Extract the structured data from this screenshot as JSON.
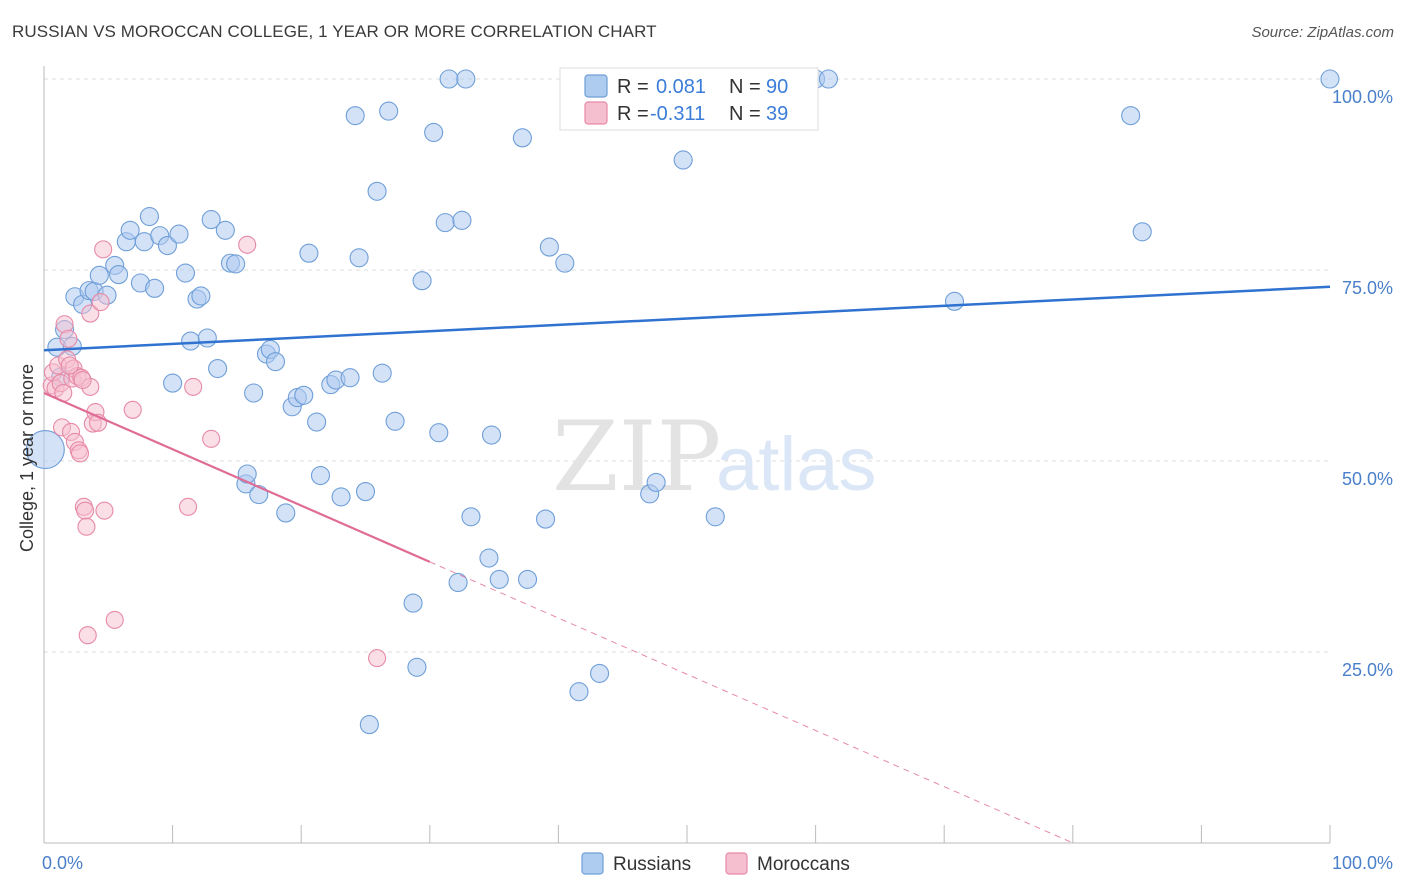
{
  "header": {
    "title": "RUSSIAN VS MOROCCAN COLLEGE, 1 YEAR OR MORE CORRELATION CHART",
    "source": "Source: ZipAtlas.com"
  },
  "watermark": {
    "zip": "ZIP",
    "atlas": "atlas"
  },
  "colors": {
    "russians_fill": "#aecbf0",
    "russians_stroke": "#6f9fd8",
    "russians_line": "#2f72d0",
    "moroccans_fill": "#f6bfd0",
    "moroccans_stroke": "#e78aa8",
    "moroccans_line": "#e06b95",
    "tick_text": "#4a7fc9",
    "grid": "#dddddd"
  },
  "legend": {
    "r_label": "R =",
    "n_label": "N =",
    "rows": [
      {
        "series": "Russians",
        "r": "0.081",
        "n": "90"
      },
      {
        "series": "Moroccans",
        "r": "-0.311",
        "n": "39"
      }
    ]
  },
  "chart_data": {
    "type": "scatter",
    "title": "RUSSIAN VS MOROCCAN COLLEGE, 1 YEAR OR MORE CORRELATION CHART",
    "xlabel": "",
    "ylabel": "College, 1 year or more",
    "xlim": [
      0,
      100
    ],
    "ylim": [
      0,
      100
    ],
    "x_tick_labels": [
      "0.0%",
      "100.0%"
    ],
    "y_tick_labels": [
      "25.0%",
      "50.0%",
      "75.0%",
      "100.0%"
    ],
    "y_ticks": [
      25,
      50,
      75,
      100
    ],
    "grid": true,
    "legend_position": "top-center",
    "series": [
      {
        "name": "Russians",
        "r": 0.081,
        "n": 90,
        "trend": {
          "x": [
            0,
            100
          ],
          "y": [
            64.5,
            72.8
          ]
        },
        "points": [
          [
            0.1,
            51.5
          ],
          [
            1.0,
            64.9
          ],
          [
            1.3,
            61.0
          ],
          [
            1.6,
            67.2
          ],
          [
            2.2,
            65.0
          ],
          [
            2.4,
            71.5
          ],
          [
            3.0,
            70.5
          ],
          [
            3.5,
            72.3
          ],
          [
            3.9,
            72.2
          ],
          [
            4.3,
            74.3
          ],
          [
            4.9,
            71.7
          ],
          [
            5.5,
            75.6
          ],
          [
            5.8,
            74.4
          ],
          [
            6.4,
            78.7
          ],
          [
            6.7,
            80.2
          ],
          [
            7.5,
            73.3
          ],
          [
            7.8,
            78.7
          ],
          [
            8.2,
            82.0
          ],
          [
            8.6,
            72.6
          ],
          [
            9.0,
            79.5
          ],
          [
            9.6,
            78.2
          ],
          [
            10.5,
            79.7
          ],
          [
            10.0,
            60.2
          ],
          [
            11.0,
            74.6
          ],
          [
            11.4,
            65.7
          ],
          [
            11.9,
            71.2
          ],
          [
            12.2,
            71.6
          ],
          [
            12.7,
            66.1
          ],
          [
            13.0,
            81.6
          ],
          [
            13.5,
            62.1
          ],
          [
            14.1,
            80.2
          ],
          [
            14.5,
            75.9
          ],
          [
            14.9,
            75.8
          ],
          [
            15.7,
            47.0
          ],
          [
            15.8,
            48.3
          ],
          [
            16.3,
            58.9
          ],
          [
            16.7,
            45.6
          ],
          [
            17.3,
            64.0
          ],
          [
            17.6,
            64.6
          ],
          [
            18.0,
            63.0
          ],
          [
            18.8,
            43.2
          ],
          [
            19.3,
            57.1
          ],
          [
            19.7,
            58.3
          ],
          [
            20.2,
            58.6
          ],
          [
            20.6,
            77.2
          ],
          [
            21.2,
            55.1
          ],
          [
            21.5,
            48.1
          ],
          [
            22.3,
            60.0
          ],
          [
            22.7,
            60.6
          ],
          [
            23.1,
            45.3
          ],
          [
            23.8,
            60.9
          ],
          [
            24.2,
            95.2
          ],
          [
            24.5,
            76.6
          ],
          [
            25.0,
            46.0
          ],
          [
            25.3,
            15.5
          ],
          [
            25.9,
            85.3
          ],
          [
            26.3,
            61.5
          ],
          [
            26.8,
            95.8
          ],
          [
            27.3,
            55.2
          ],
          [
            28.7,
            31.4
          ],
          [
            29.0,
            23.0
          ],
          [
            29.4,
            73.6
          ],
          [
            30.3,
            93.0
          ],
          [
            30.7,
            53.7
          ],
          [
            31.2,
            81.2
          ],
          [
            31.5,
            100.0
          ],
          [
            32.2,
            34.1
          ],
          [
            32.5,
            81.5
          ],
          [
            32.8,
            100.0
          ],
          [
            33.2,
            42.7
          ],
          [
            34.6,
            37.3
          ],
          [
            34.8,
            53.4
          ],
          [
            35.4,
            34.5
          ],
          [
            37.2,
            92.3
          ],
          [
            37.6,
            34.5
          ],
          [
            39.0,
            42.4
          ],
          [
            39.3,
            78.0
          ],
          [
            40.5,
            75.9
          ],
          [
            41.6,
            19.8
          ],
          [
            43.2,
            22.2
          ],
          [
            47.1,
            45.7
          ],
          [
            47.6,
            47.2
          ],
          [
            49.7,
            89.4
          ],
          [
            52.2,
            42.7
          ],
          [
            60.0,
            100.0
          ],
          [
            61.0,
            100.0
          ],
          [
            70.8,
            70.9
          ],
          [
            84.5,
            95.2
          ],
          [
            85.4,
            80.0
          ],
          [
            100.0,
            100.0
          ]
        ]
      },
      {
        "name": "Moroccans",
        "r": -0.311,
        "n": 39,
        "trend": {
          "x": [
            0,
            30
          ],
          "y": [
            58.9,
            36.8
          ]
        },
        "trend_dashed": {
          "x": [
            30,
            100
          ],
          "y": [
            36.8,
            -14.7
          ]
        },
        "points": [
          [
            0.6,
            59.9
          ],
          [
            0.7,
            61.6
          ],
          [
            0.9,
            59.5
          ],
          [
            1.1,
            62.5
          ],
          [
            1.3,
            60.2
          ],
          [
            1.4,
            54.4
          ],
          [
            1.6,
            67.9
          ],
          [
            1.8,
            63.3
          ],
          [
            2.1,
            53.8
          ],
          [
            2.2,
            60.8
          ],
          [
            2.3,
            62.1
          ],
          [
            2.4,
            52.5
          ],
          [
            2.6,
            61.1
          ],
          [
            2.7,
            51.4
          ],
          [
            2.9,
            60.9
          ],
          [
            3.1,
            44.0
          ],
          [
            3.2,
            43.5
          ],
          [
            3.3,
            41.4
          ],
          [
            3.4,
            27.2
          ],
          [
            3.6,
            59.7
          ],
          [
            3.6,
            69.3
          ],
          [
            3.8,
            54.9
          ],
          [
            4.0,
            56.4
          ],
          [
            4.4,
            70.8
          ],
          [
            4.6,
            77.7
          ],
          [
            4.7,
            43.5
          ],
          [
            5.5,
            29.2
          ],
          [
            6.9,
            56.7
          ],
          [
            11.2,
            44.0
          ],
          [
            11.6,
            59.7
          ],
          [
            13.0,
            52.9
          ],
          [
            15.8,
            78.3
          ],
          [
            25.9,
            24.2
          ],
          [
            3.0,
            60.6
          ],
          [
            2.0,
            62.5
          ],
          [
            1.5,
            58.9
          ],
          [
            4.2,
            55.0
          ],
          [
            2.8,
            51.0
          ],
          [
            1.9,
            66.0
          ]
        ]
      }
    ]
  }
}
